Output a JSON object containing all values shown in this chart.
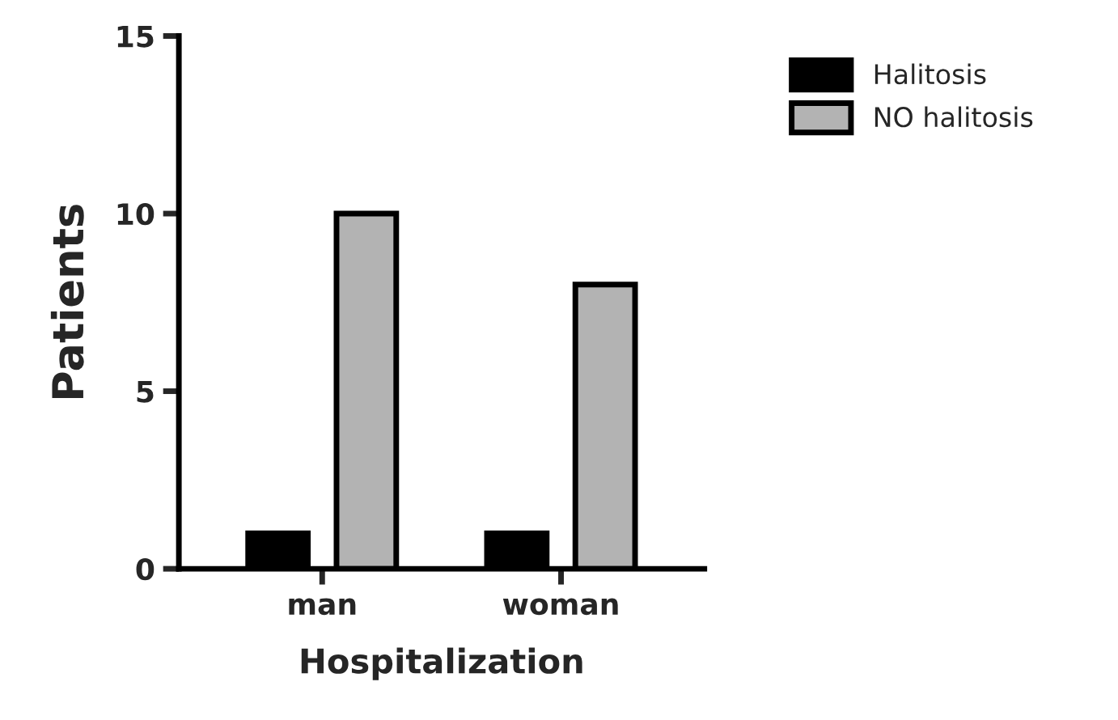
{
  "chart_data": {
    "type": "bar",
    "xlabel": "Hospitalization",
    "ylabel": "Patients",
    "categories": [
      "man",
      "woman"
    ],
    "series": [
      {
        "name": "Halitosis",
        "color": "#000000",
        "values": [
          1,
          1
        ]
      },
      {
        "name": "NO halitosis",
        "color": "#b3b3b3",
        "values": [
          10,
          8
        ]
      }
    ],
    "ylim": [
      0,
      15
    ],
    "yticks": [
      0,
      5,
      10,
      15
    ],
    "grid": false,
    "legend": "top right"
  }
}
